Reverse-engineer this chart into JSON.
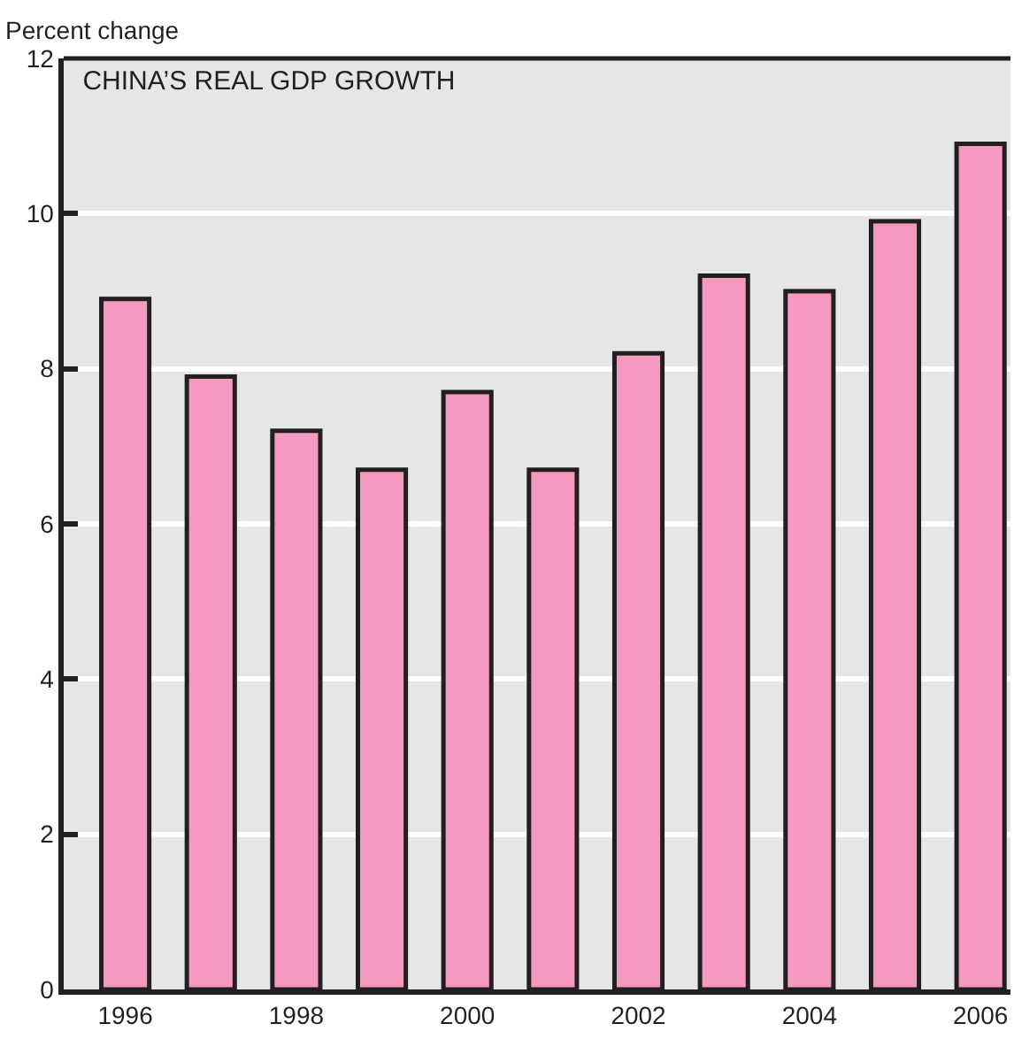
{
  "chart_data": {
    "type": "bar",
    "title": "CHINA’S REAL GDP GROWTH",
    "ylabel": "Percent change",
    "categories": [
      "1996",
      null,
      "1998",
      null,
      "2000",
      null,
      "2002",
      null,
      "2004",
      null,
      "2006"
    ],
    "values": [
      8.9,
      7.9,
      7.2,
      6.7,
      7.7,
      6.7,
      8.2,
      9.2,
      9.0,
      9.9,
      10.9
    ],
    "color": "#f49ac1",
    "ylim": [
      0,
      12
    ],
    "yticks": [
      0,
      2,
      4,
      6,
      8,
      10,
      12
    ],
    "grid": "y"
  }
}
